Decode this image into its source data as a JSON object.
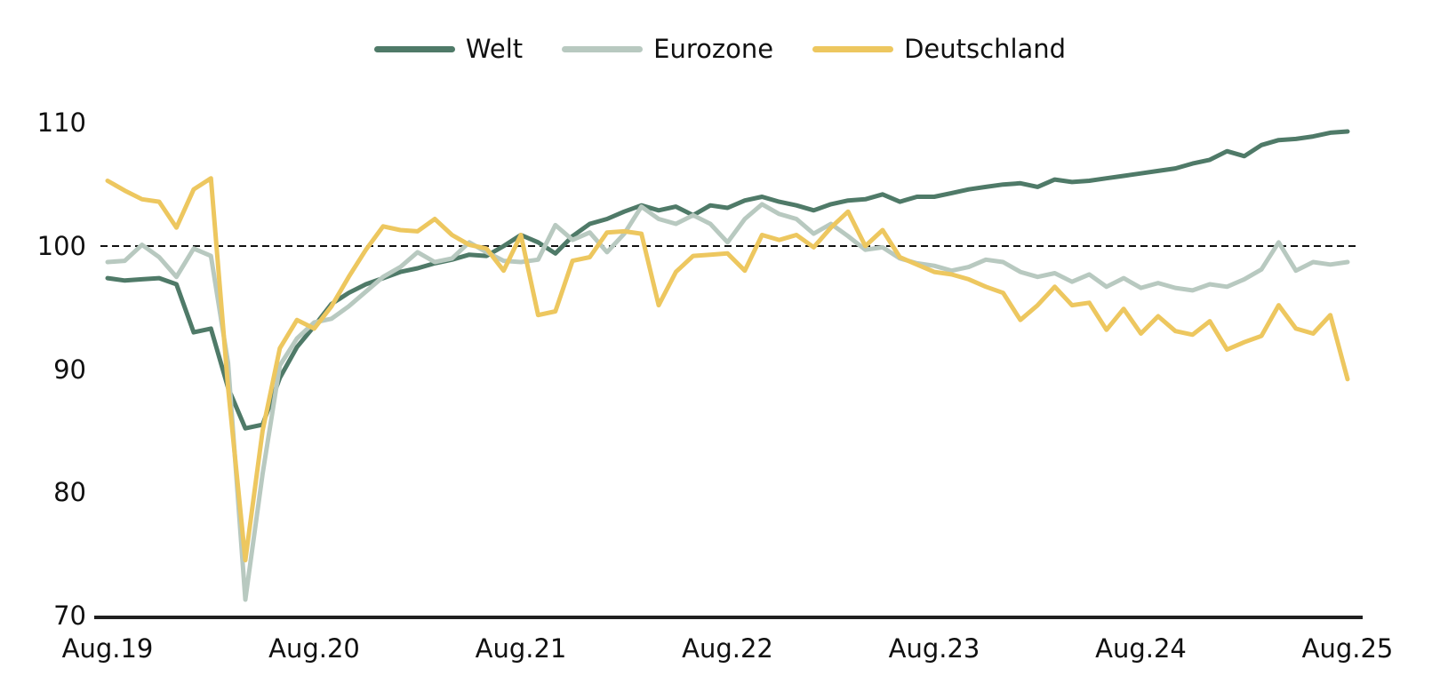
{
  "chart_data": {
    "type": "line",
    "title": "",
    "xlabel": "",
    "ylabel": "",
    "ylim": [
      70,
      110
    ],
    "grid": "off",
    "legend_position": "top-center",
    "reference_line_y": 100,
    "y_ticks": [
      110,
      100,
      90,
      80,
      70
    ],
    "y_tick_labels": [
      "110",
      "100",
      "90",
      "80",
      "70"
    ],
    "x_tick_labels": [
      "Aug.19",
      "Aug.20",
      "Aug.21",
      "Aug.22",
      "Aug.23",
      "Aug.24",
      "Aug.25"
    ],
    "frequency": "monthly",
    "months": [
      "2019-08",
      "2019-09",
      "2019-10",
      "2019-11",
      "2019-12",
      "2020-01",
      "2020-02",
      "2020-03",
      "2020-04",
      "2020-05",
      "2020-06",
      "2020-07",
      "2020-08",
      "2020-09",
      "2020-10",
      "2020-11",
      "2020-12",
      "2021-01",
      "2021-02",
      "2021-03",
      "2021-04",
      "2021-05",
      "2021-06",
      "2021-07",
      "2021-08",
      "2021-09",
      "2021-10",
      "2021-11",
      "2021-12",
      "2022-01",
      "2022-02",
      "2022-03",
      "2022-04",
      "2022-05",
      "2022-06",
      "2022-07",
      "2022-08",
      "2022-09",
      "2022-10",
      "2022-11",
      "2022-12",
      "2023-01",
      "2023-02",
      "2023-03",
      "2023-04",
      "2023-05",
      "2023-06",
      "2023-07",
      "2023-08",
      "2023-09",
      "2023-10",
      "2023-11",
      "2023-12",
      "2024-01",
      "2024-02",
      "2024-03",
      "2024-04",
      "2024-05",
      "2024-06",
      "2024-07",
      "2024-08",
      "2024-09",
      "2024-10",
      "2024-11",
      "2024-12",
      "2025-01",
      "2025-02",
      "2025-03",
      "2025-04",
      "2025-05",
      "2025-06",
      "2025-07",
      "2025-08"
    ],
    "series": [
      {
        "name": "Welt",
        "color": "#4f7a68",
        "values": [
          97.4,
          97.2,
          97.3,
          97.4,
          96.9,
          93.0,
          93.3,
          88.5,
          85.2,
          85.5,
          89.3,
          91.8,
          93.5,
          95.3,
          96.2,
          96.9,
          97.4,
          97.9,
          98.2,
          98.6,
          98.9,
          99.3,
          99.2,
          100.0,
          100.9,
          100.3,
          99.4,
          100.8,
          101.8,
          102.2,
          102.8,
          103.3,
          102.9,
          103.2,
          102.5,
          103.3,
          103.1,
          103.7,
          104.0,
          103.6,
          103.3,
          102.9,
          103.4,
          103.7,
          103.8,
          104.2,
          103.6,
          104.0,
          104.0,
          104.3,
          104.6,
          104.8,
          105.0,
          105.1,
          104.8,
          105.4,
          105.2,
          105.3,
          105.5,
          105.7,
          105.9,
          106.1,
          106.3,
          106.7,
          107.0,
          107.7,
          107.3,
          108.2,
          108.6,
          108.7,
          108.9,
          109.2,
          109.3
        ]
      },
      {
        "name": "Eurozone",
        "color": "#b8c9c0",
        "values": [
          98.7,
          98.8,
          100.1,
          99.1,
          97.5,
          99.8,
          99.2,
          90.5,
          71.3,
          81.5,
          90.3,
          92.5,
          93.8,
          94.1,
          95.1,
          96.3,
          97.5,
          98.3,
          99.5,
          98.7,
          99.0,
          100.3,
          99.5,
          98.8,
          98.7,
          98.9,
          101.7,
          100.5,
          101.1,
          99.5,
          101.0,
          103.2,
          102.2,
          101.8,
          102.5,
          101.8,
          100.3,
          102.2,
          103.4,
          102.6,
          102.2,
          101.0,
          101.8,
          100.8,
          99.7,
          99.9,
          99.0,
          98.6,
          98.4,
          98.0,
          98.3,
          98.9,
          98.7,
          97.9,
          97.5,
          97.8,
          97.1,
          97.7,
          96.7,
          97.4,
          96.6,
          97.0,
          96.6,
          96.4,
          96.9,
          96.7,
          97.3,
          98.1,
          100.3,
          98.0,
          98.7,
          98.5,
          98.7
        ]
      },
      {
        "name": "Deutschland",
        "color": "#edc75f",
        "values": [
          105.3,
          104.5,
          103.8,
          103.6,
          101.5,
          104.6,
          105.5,
          88.5,
          74.5,
          85.0,
          91.7,
          94.0,
          93.3,
          95.1,
          97.5,
          99.7,
          101.6,
          101.3,
          101.2,
          102.2,
          100.9,
          100.1,
          99.8,
          98.0,
          100.9,
          94.4,
          94.7,
          98.8,
          99.1,
          101.1,
          101.2,
          101.0,
          95.2,
          97.9,
          99.2,
          99.3,
          99.4,
          98.0,
          100.9,
          100.5,
          100.9,
          99.9,
          101.5,
          102.8,
          100.0,
          101.3,
          99.1,
          98.5,
          97.9,
          97.7,
          97.3,
          96.7,
          96.2,
          94.0,
          95.2,
          96.7,
          95.2,
          95.4,
          93.2,
          94.9,
          92.9,
          94.3,
          93.1,
          92.8,
          93.9,
          91.6,
          92.2,
          92.7,
          95.2,
          93.3,
          92.9,
          94.4,
          89.2
        ]
      }
    ]
  },
  "colors": {
    "background": "#ffffff",
    "text": "#111111",
    "axis_line": "#1f1f1f",
    "reference_line": "#111111"
  }
}
